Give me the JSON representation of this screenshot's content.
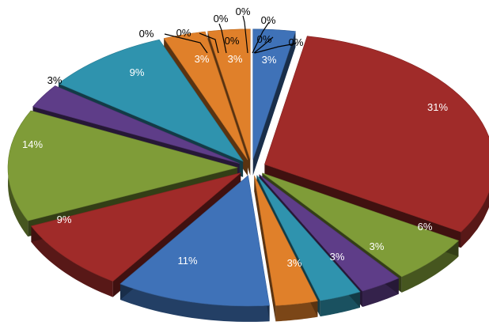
{
  "chart_data": {
    "type": "pie",
    "style": "3d-exploded",
    "categories": [
      "",
      "",
      "",
      "",
      "",
      "",
      "",
      "",
      "",
      "",
      "",
      "",
      "",
      "",
      "",
      "",
      "",
      "",
      "",
      "",
      ""
    ],
    "values": [
      3,
      31,
      6,
      3,
      3,
      3,
      11,
      9,
      14,
      3,
      9,
      3,
      3,
      0,
      0,
      0,
      0,
      0,
      0,
      0,
      0
    ],
    "labels": [
      "3%",
      "31%",
      "6%",
      "3%",
      "3%",
      "3%",
      "11%",
      "9%",
      "14%",
      "3%",
      "9%",
      "3%",
      "3%",
      "0%",
      "0%",
      "0%",
      "0%",
      "0%",
      "0%",
      "0%",
      "0%"
    ],
    "colors": [
      "#3f72b8",
      "#a02b29",
      "#7f9c38",
      "#5e3d88",
      "#2f93ae",
      "#e0802a",
      "#3f72b8",
      "#a02b29",
      "#7f9c38",
      "#5e3d88",
      "#2f93ae",
      "#e0802a",
      "#e0802a",
      "#3f72b8",
      "#a02b29",
      "#7f9c38",
      "#5e3d88",
      "#2f93ae",
      "#e0802a",
      "#3f72b8",
      "#a02b29"
    ],
    "title": "",
    "legend": "none"
  }
}
